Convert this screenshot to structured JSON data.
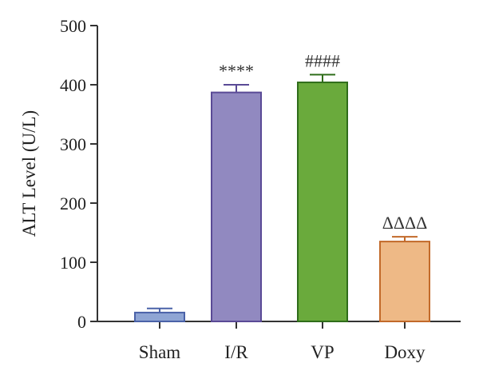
{
  "chart_data": {
    "type": "bar",
    "title": "",
    "xlabel": "",
    "ylabel": "ALT Level (U/L)",
    "ylim": [
      0,
      500
    ],
    "yticks": [
      0,
      100,
      200,
      300,
      400,
      500
    ],
    "grid": false,
    "legend": "none",
    "categories": [
      "Sham",
      "I/R",
      "VP",
      "Doxy"
    ],
    "values": [
      15,
      387,
      404,
      135
    ],
    "errors": [
      7,
      13,
      13,
      8
    ],
    "annotations": [
      "",
      "****",
      "####",
      "ΔΔΔΔ"
    ],
    "colors": {
      "fill": [
        "#8fa5d4",
        "#9189c0",
        "#6aaa3c",
        "#eeb986"
      ],
      "edge": [
        "#4a62a8",
        "#5a4a96",
        "#2f6d1a",
        "#c26a2a"
      ]
    }
  }
}
